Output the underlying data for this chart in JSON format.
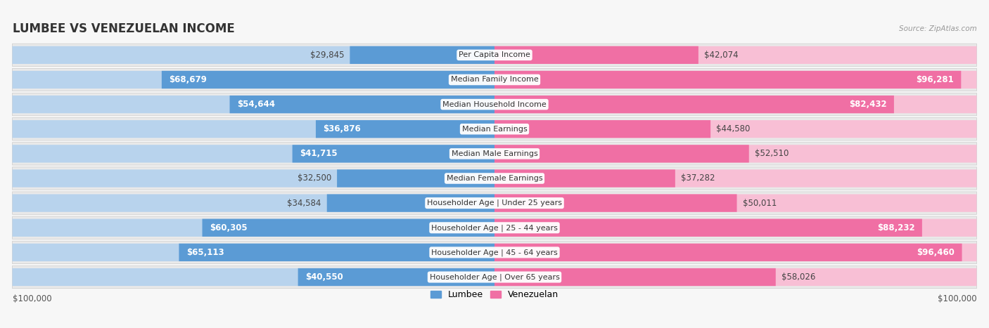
{
  "title": "LUMBEE VS VENEZUELAN INCOME",
  "source": "Source: ZipAtlas.com",
  "categories": [
    "Per Capita Income",
    "Median Family Income",
    "Median Household Income",
    "Median Earnings",
    "Median Male Earnings",
    "Median Female Earnings",
    "Householder Age | Under 25 years",
    "Householder Age | 25 - 44 years",
    "Householder Age | 45 - 64 years",
    "Householder Age | Over 65 years"
  ],
  "lumbee_values": [
    29845,
    68679,
    54644,
    36876,
    41715,
    32500,
    34584,
    60305,
    65113,
    40550
  ],
  "venezuelan_values": [
    42074,
    96281,
    82432,
    44580,
    52510,
    37282,
    50011,
    88232,
    96460,
    58026
  ],
  "lumbee_labels": [
    "$29,845",
    "$68,679",
    "$54,644",
    "$36,876",
    "$41,715",
    "$32,500",
    "$34,584",
    "$60,305",
    "$65,113",
    "$40,550"
  ],
  "venezuelan_labels": [
    "$42,074",
    "$96,281",
    "$82,432",
    "$44,580",
    "$52,510",
    "$37,282",
    "$50,011",
    "$88,232",
    "$96,460",
    "$58,026"
  ],
  "lumbee_color_dark": "#5b9bd5",
  "lumbee_color_light": "#b8d3ed",
  "venezuelan_color_dark": "#f06fa4",
  "venezuelan_color_light": "#f8bfd5",
  "max_value": 100000,
  "row_bg_color": "#e9e9e9",
  "fig_bg_color": "#f7f7f7",
  "title_fontsize": 12,
  "label_fontsize": 8.5,
  "cat_fontsize": 8,
  "legend_lumbee": "Lumbee",
  "legend_venezuelan": "Venezuelan",
  "lumbee_inside_threshold": 35000,
  "venezuelan_inside_threshold": 60000
}
